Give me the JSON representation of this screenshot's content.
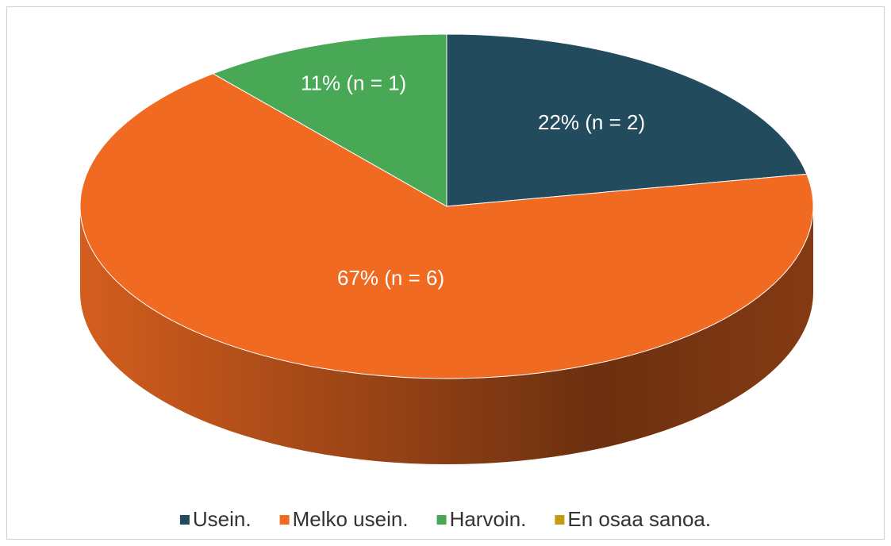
{
  "chart_data": {
    "type": "pie",
    "three_d": true,
    "categories": [
      "Usein.",
      "Melko usein.",
      "Harvoin.",
      "En osaa sanoa."
    ],
    "values": [
      22,
      67,
      11,
      0
    ],
    "value_labels": [
      "22% (n = 2)",
      "67% (n = 6)",
      "11% (n = 1)",
      null
    ],
    "colors": [
      "#234b5e",
      "#f06a22",
      "#48a856",
      "#c59a10"
    ],
    "legend": "bottom"
  }
}
